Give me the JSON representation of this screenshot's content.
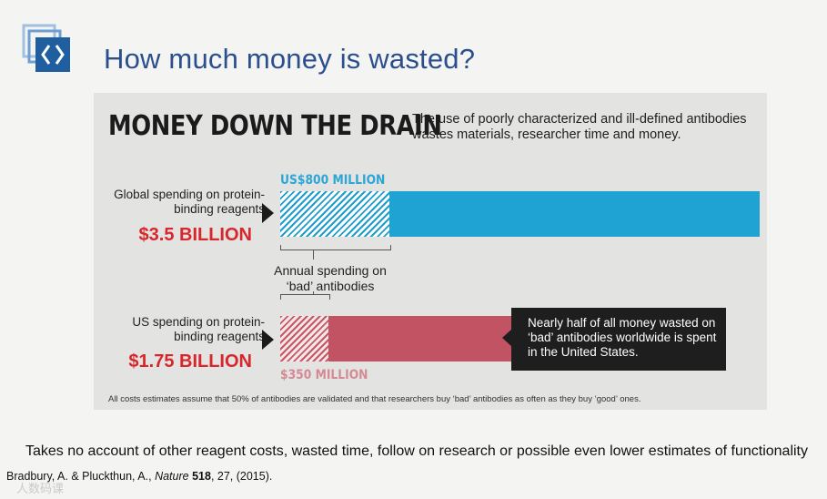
{
  "slide": {
    "title": "How much money is wasted?",
    "body_text": "Takes no account of other reagent costs, wasted time, follow on research or possible even lower estimates of functionality",
    "citation": {
      "authors": "Bradbury, A. & Pluckthun, A., ",
      "journal": "Nature",
      "volume": "518",
      "rest": ", 27, (2015)."
    },
    "watermark": "人数码课",
    "logo_icon": "code-brackets-logo-icon"
  },
  "infographic": {
    "heading": "MONEY DOWN THE DRAIN",
    "subtitle": "The use of poorly characterized and ill-defined antibodies wastes materials, researcher time and money.",
    "global": {
      "label": "Global spending on protein-binding reagents",
      "amount": "$3.5 BILLION",
      "bad_label": "US$800 MILLION",
      "total_value": 3500,
      "bad_value": 800
    },
    "us": {
      "label": "US spending on protein-binding reagents",
      "amount": "$1.75 BILLION",
      "bad_label": "$350 MILLION",
      "total_value": 1750,
      "bad_value": 350
    },
    "annotation": "Annual spending on ‘bad’ antibodies",
    "callout": "Nearly half of all money wasted on ‘bad’ antibodies worldwide is spent in the United States.",
    "footnote": "All costs estimates assume that 50% of antibodies are validated and that researchers buy ‘bad’ antibodies as often as they buy ‘good’ ones.",
    "colors": {
      "global_bar": "#1fa3d2",
      "us_bar": "#c25363",
      "amount_text": "#d7262c",
      "title": "#2b4f8e"
    }
  }
}
